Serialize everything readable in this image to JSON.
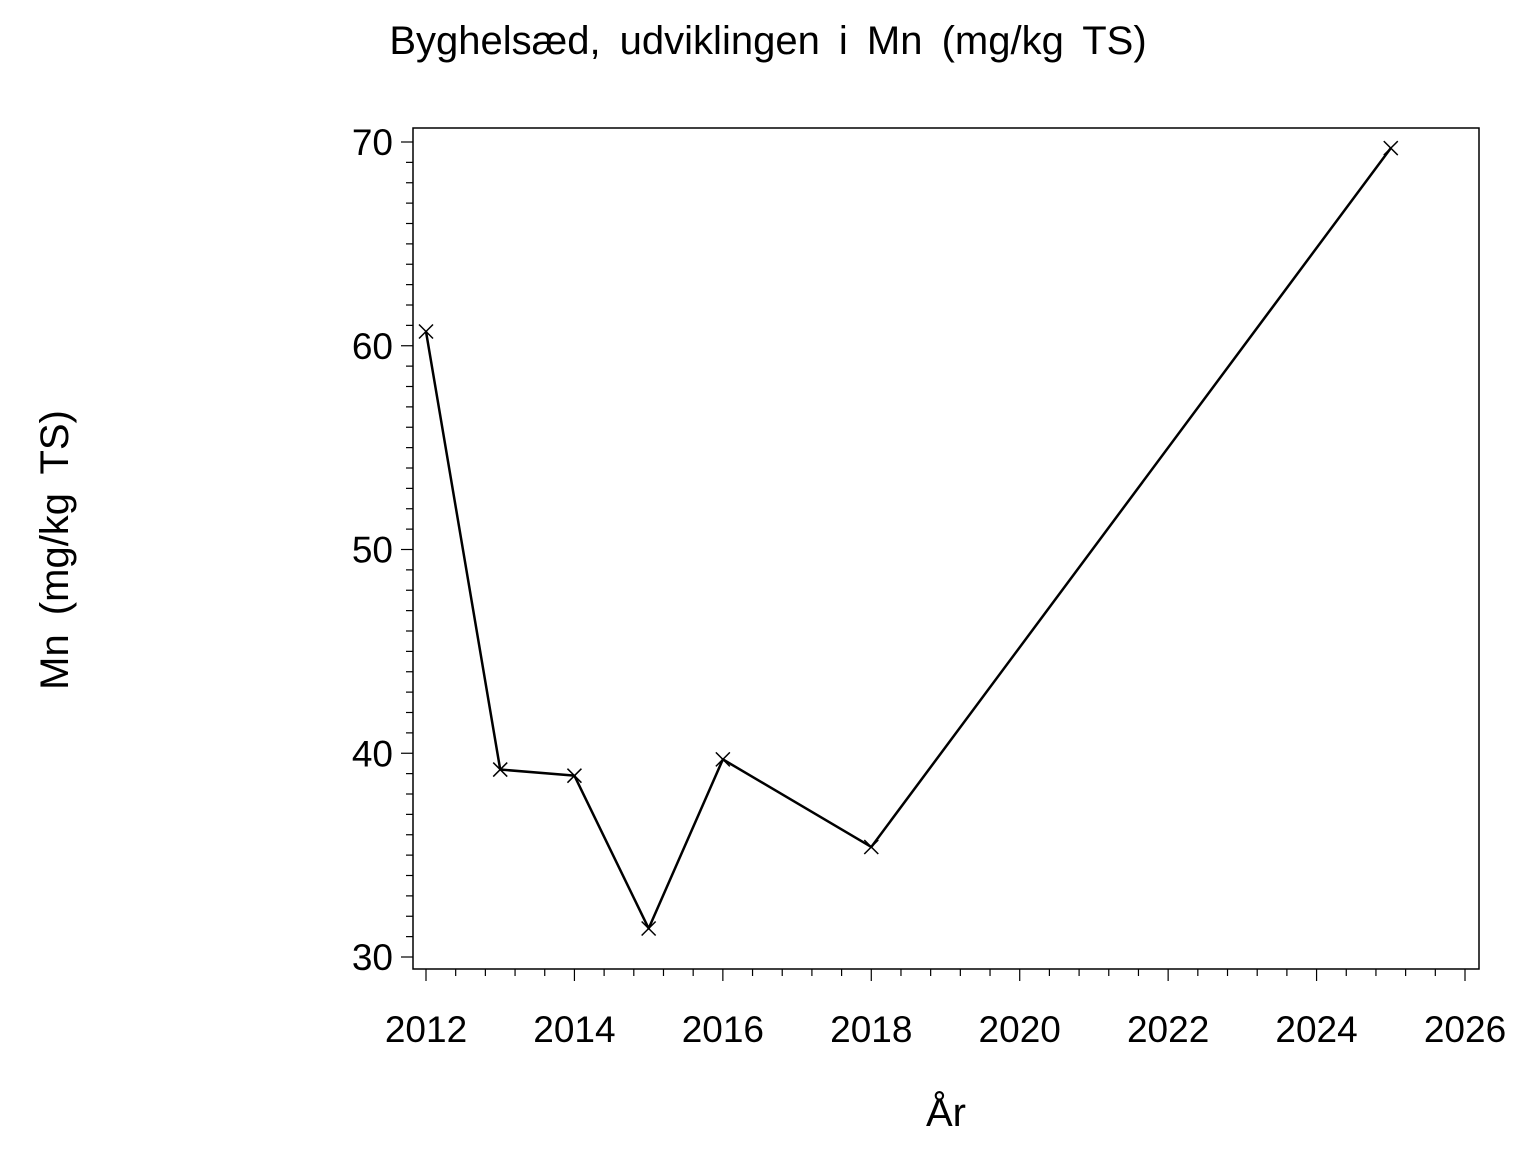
{
  "chart_data": {
    "type": "line",
    "title": "Byghelsæd, udviklingen i Mn (mg/kg TS)",
    "xlabel": "År",
    "ylabel": "Mn (mg/kg TS)",
    "xlim": [
      2012,
      2026
    ],
    "ylim": [
      30,
      70
    ],
    "x_ticks": [
      2012,
      2014,
      2016,
      2018,
      2020,
      2022,
      2024,
      2026
    ],
    "y_ticks": [
      30,
      40,
      50,
      60,
      70
    ],
    "marker": "x",
    "line_color": "#000000",
    "series": [
      {
        "x": [
          2012,
          2013,
          2014,
          2015,
          2016,
          2018,
          2025
        ],
        "y": [
          60.7,
          39.2,
          38.9,
          31.4,
          39.7,
          35.4,
          69.7
        ]
      }
    ]
  }
}
